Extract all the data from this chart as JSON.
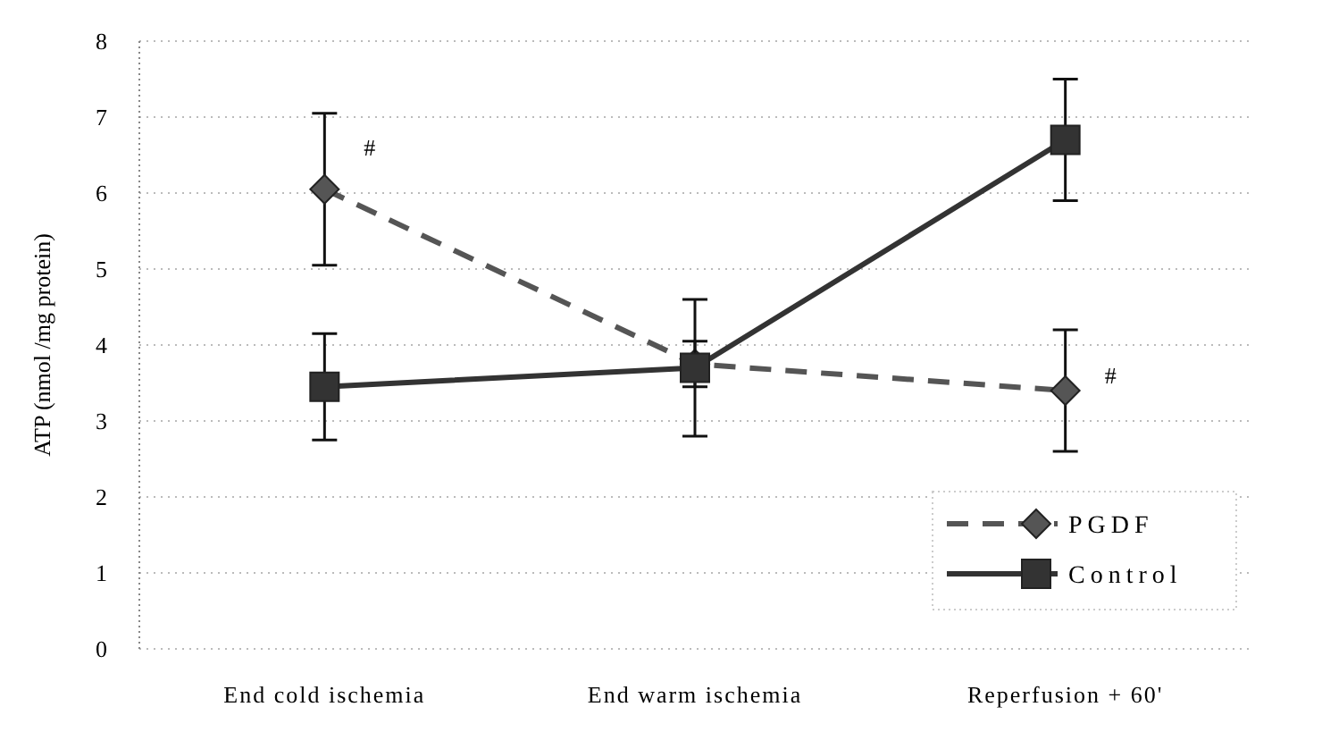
{
  "chart_data": {
    "type": "line",
    "ylabel": "ATP (nmol /mg protein)",
    "categories": [
      "End cold ischemia",
      "End warm ischemia",
      "Reperfusion + 60'"
    ],
    "series": [
      {
        "name": "PGDF",
        "color": "#555555",
        "values": [
          6.05,
          3.75,
          3.4
        ],
        "errors": [
          1.0,
          0.3,
          0.8
        ],
        "marker": "diamond",
        "line_style": "dashed"
      },
      {
        "name": "Control",
        "color": "#333333",
        "values": [
          3.45,
          3.7,
          6.7
        ],
        "errors": [
          0.7,
          0.9,
          0.8
        ],
        "marker": "square",
        "line_style": "solid"
      }
    ],
    "annotations": [
      {
        "text": "#",
        "x": "End cold ischemia",
        "y": 6.6
      },
      {
        "text": "#",
        "x": "Reperfusion + 60'",
        "y": 3.6
      }
    ],
    "ylim": [
      0,
      8
    ],
    "yticks": [
      0,
      1,
      2,
      3,
      4,
      5,
      6,
      7,
      8
    ],
    "grid": "y",
    "legend": "bottom right"
  }
}
